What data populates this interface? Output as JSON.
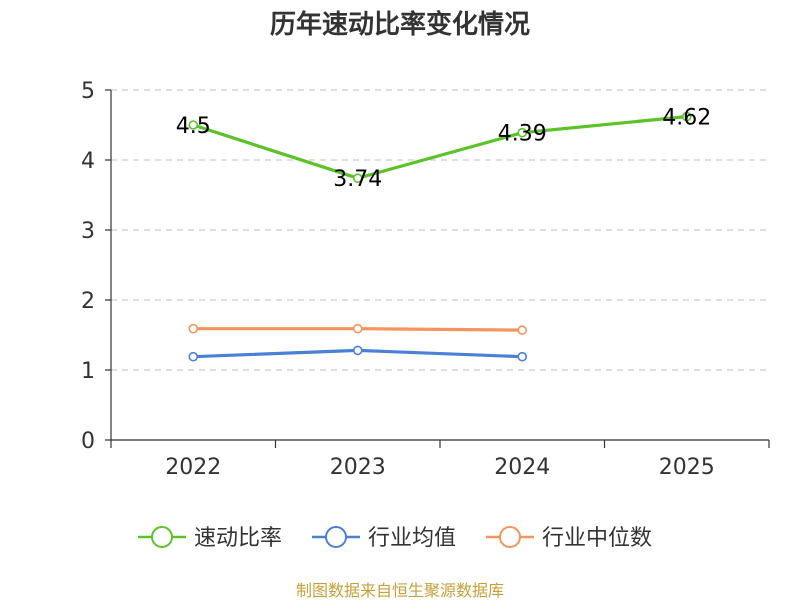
{
  "chart_data": {
    "type": "line",
    "title": "历年速动比率变化情况",
    "categories": [
      "2022",
      "2023",
      "2024",
      "2025"
    ],
    "ylim": [
      0,
      5
    ],
    "yticks": [
      0,
      1,
      2,
      3,
      4,
      5
    ],
    "ytick_labels": [
      "0",
      "1",
      "2",
      "3",
      "4",
      "5"
    ],
    "grid": true,
    "legend_position": "bottom",
    "series": [
      {
        "name": "速动比率",
        "color": "#5bc227",
        "values": [
          4.5,
          3.74,
          4.39,
          4.62
        ],
        "labels": [
          "4.5",
          "3.74",
          "4.39",
          "4.62"
        ],
        "show_labels": true
      },
      {
        "name": "行业均值",
        "color": "#4b80d7",
        "values": [
          1.19,
          1.28,
          1.19,
          null
        ],
        "show_labels": false
      },
      {
        "name": "行业中位数",
        "color": "#f4945f",
        "values": [
          1.59,
          1.59,
          1.57,
          null
        ],
        "show_labels": false
      }
    ]
  },
  "source": {
    "text": "制图数据来自恒生聚源数据库",
    "color": "#c8a03a"
  }
}
